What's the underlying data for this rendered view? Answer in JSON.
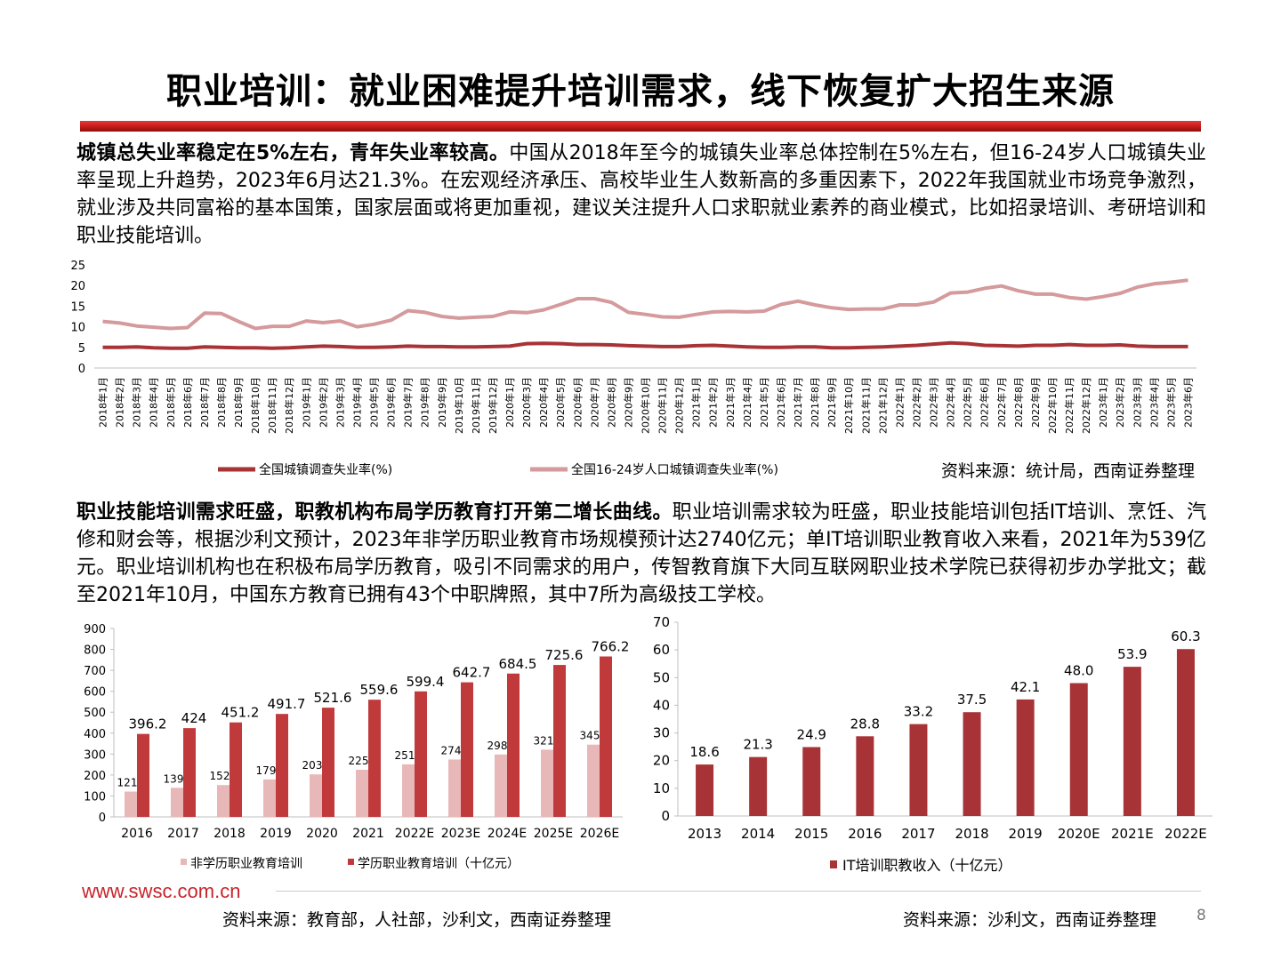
{
  "header": {
    "title": "职业培训：就业困难提升培训需求，线下恢复扩大招生来源"
  },
  "para1": {
    "bold": "城镇总失业率稳定在5%左右，青年失业率较高。",
    "text": "中国从2018年至今的城镇失业率总体控制在5%左右，但16-24岁人口城镇失业率呈现上升趋势，2023年6月达21.3%。在宏观经济承压、高校毕业生人数新高的多重因素下，2022年我国就业市场竞争激烈，就业涉及共同富裕的基本国策，国家层面或将更加重视，建议关注提升人口求职就业素养的商业模式，比如招录培训、考研培训和职业技能培训。"
  },
  "para2": {
    "bold": "职业技能培训需求旺盛，职教机构布局学历教育打开第二增长曲线。",
    "text": "职业培训需求较为旺盛，职业技能培训包括IT培训、烹饪、汽修和财会等，根据沙利文预计，2023年非学历职业教育市场规模预计达2740亿元；单IT培训职业教育收入来看，2021年为539亿元。职业培训机构也在积极布局学历教育，吸引不同需求的用户，传智教育旗下大同互联网职业技术学院已获得初步办学批文；截至2021年10月，中国东方教育已拥有43个中职牌照，其中7所为高级技工学校。"
  },
  "source1": "资料来源：统计局，西南证券整理",
  "source2": "资料来源：教育部，人社部，沙利文，西南证券整理",
  "source3": "资料来源：沙利文，西南证券整理",
  "footer": {
    "logo": "www.swsc.com.cn",
    "page": "8"
  },
  "colors": {
    "dark_red": "#a83336",
    "light_red": "#d49a9c",
    "pale_red": "#e8b8b8"
  },
  "chart_data": [
    {
      "type": "line",
      "ylim": [
        0,
        25
      ],
      "yticks": [
        0,
        5,
        10,
        15,
        20,
        25
      ],
      "categories": [
        "2018年1月",
        "2018年2月",
        "2018年3月",
        "2018年4月",
        "2018年5月",
        "2018年6月",
        "2018年7月",
        "2018年8月",
        "2018年9月",
        "2018年10月",
        "2018年11月",
        "2018年12月",
        "2019年1月",
        "2019年2月",
        "2019年3月",
        "2019年4月",
        "2019年5月",
        "2019年6月",
        "2019年7月",
        "2019年8月",
        "2019年9月",
        "2019年10月",
        "2019年11月",
        "2019年12月",
        "2020年1月",
        "2020年3月",
        "2020年4月",
        "2020年5月",
        "2020年6月",
        "2020年7月",
        "2020年8月",
        "2020年9月",
        "2020年10月",
        "2020年11月",
        "2020年12月",
        "2021年1月",
        "2021年2月",
        "2021年3月",
        "2021年4月",
        "2021年5月",
        "2021年6月",
        "2021年7月",
        "2021年8月",
        "2021年9月",
        "2021年10月",
        "2021年11月",
        "2021年12月",
        "2022年1月",
        "2022年2月",
        "2022年3月",
        "2022年4月",
        "2022年5月",
        "2022年6月",
        "2022年7月",
        "2022年8月",
        "2022年9月",
        "2022年10月",
        "2022年11月",
        "2022年12月",
        "2023年1月",
        "2023年2月",
        "2023年3月",
        "2023年4月",
        "2023年5月",
        "2023年6月"
      ],
      "series": [
        {
          "name": "全国城镇调查失业率(%)",
          "color": "#a83336",
          "values": [
            5.0,
            5.0,
            5.1,
            4.9,
            4.8,
            4.8,
            5.1,
            5.0,
            4.9,
            4.9,
            4.8,
            4.9,
            5.1,
            5.3,
            5.2,
            5.0,
            5.0,
            5.1,
            5.3,
            5.2,
            5.2,
            5.1,
            5.1,
            5.2,
            5.3,
            5.9,
            6.0,
            5.9,
            5.7,
            5.7,
            5.6,
            5.4,
            5.3,
            5.2,
            5.2,
            5.4,
            5.5,
            5.3,
            5.1,
            5.0,
            5.0,
            5.1,
            5.1,
            4.9,
            4.9,
            5.0,
            5.1,
            5.3,
            5.5,
            5.8,
            6.1,
            5.9,
            5.5,
            5.4,
            5.3,
            5.5,
            5.5,
            5.7,
            5.5,
            5.5,
            5.6,
            5.3,
            5.2,
            5.2,
            5.2
          ]
        },
        {
          "name": "全国16-24岁人口城镇调查失业率(%)",
          "color": "#d49a9c",
          "values": [
            11.3,
            10.9,
            10.2,
            9.9,
            9.6,
            9.8,
            13.3,
            13.2,
            11.3,
            9.6,
            10.1,
            10.1,
            11.4,
            11.0,
            11.4,
            10.0,
            10.6,
            11.6,
            13.9,
            13.5,
            12.5,
            12.1,
            12.3,
            12.5,
            13.6,
            13.4,
            14.1,
            15.4,
            16.8,
            16.8,
            15.9,
            13.5,
            13.0,
            12.4,
            12.3,
            13.0,
            13.6,
            13.7,
            13.6,
            13.8,
            15.4,
            16.2,
            15.3,
            14.6,
            14.2,
            14.3,
            14.3,
            15.3,
            15.3,
            16.0,
            18.2,
            18.4,
            19.3,
            19.9,
            18.7,
            17.9,
            17.9,
            17.1,
            16.7,
            17.3,
            18.1,
            19.6,
            20.4,
            20.8,
            21.3
          ]
        }
      ]
    },
    {
      "type": "bar",
      "ylim": [
        0,
        900
      ],
      "yticks": [
        0,
        100,
        200,
        300,
        400,
        500,
        600,
        700,
        800,
        900
      ],
      "categories": [
        "2016",
        "2017",
        "2018",
        "2019",
        "2020",
        "2021",
        "2022E",
        "2023E",
        "2024E",
        "2025E",
        "2026E"
      ],
      "series": [
        {
          "name": "非学历职业教育培训",
          "color": "#e8b8b8",
          "values": [
            121,
            139,
            152,
            179,
            203,
            225,
            251,
            274,
            298,
            321,
            345
          ]
        },
        {
          "name": "学历职业教育培训（十亿元）",
          "color": "#c0393b",
          "values": [
            396.2,
            424,
            451.2,
            491.7,
            521.6,
            559.6,
            599.4,
            642.7,
            684.5,
            725.6,
            766.2
          ]
        }
      ]
    },
    {
      "type": "bar",
      "ylim": [
        0,
        70
      ],
      "yticks": [
        0,
        10,
        20,
        30,
        40,
        50,
        60,
        70
      ],
      "categories": [
        "2013",
        "2014",
        "2015",
        "2016",
        "2017",
        "2018",
        "2019",
        "2020E",
        "2021E",
        "2022E"
      ],
      "series": [
        {
          "name": "IT培训职教收入（十亿元）",
          "color": "#a83336",
          "values": [
            18.6,
            21.3,
            24.9,
            28.8,
            33.2,
            37.5,
            42.1,
            48.0,
            53.9,
            60.3
          ],
          "labels": [
            "18.6",
            "21.3",
            "24.9",
            "28.8",
            "33.2",
            "37.5",
            "42.1",
            "48.0",
            "53.9",
            "60.3"
          ]
        }
      ]
    }
  ]
}
